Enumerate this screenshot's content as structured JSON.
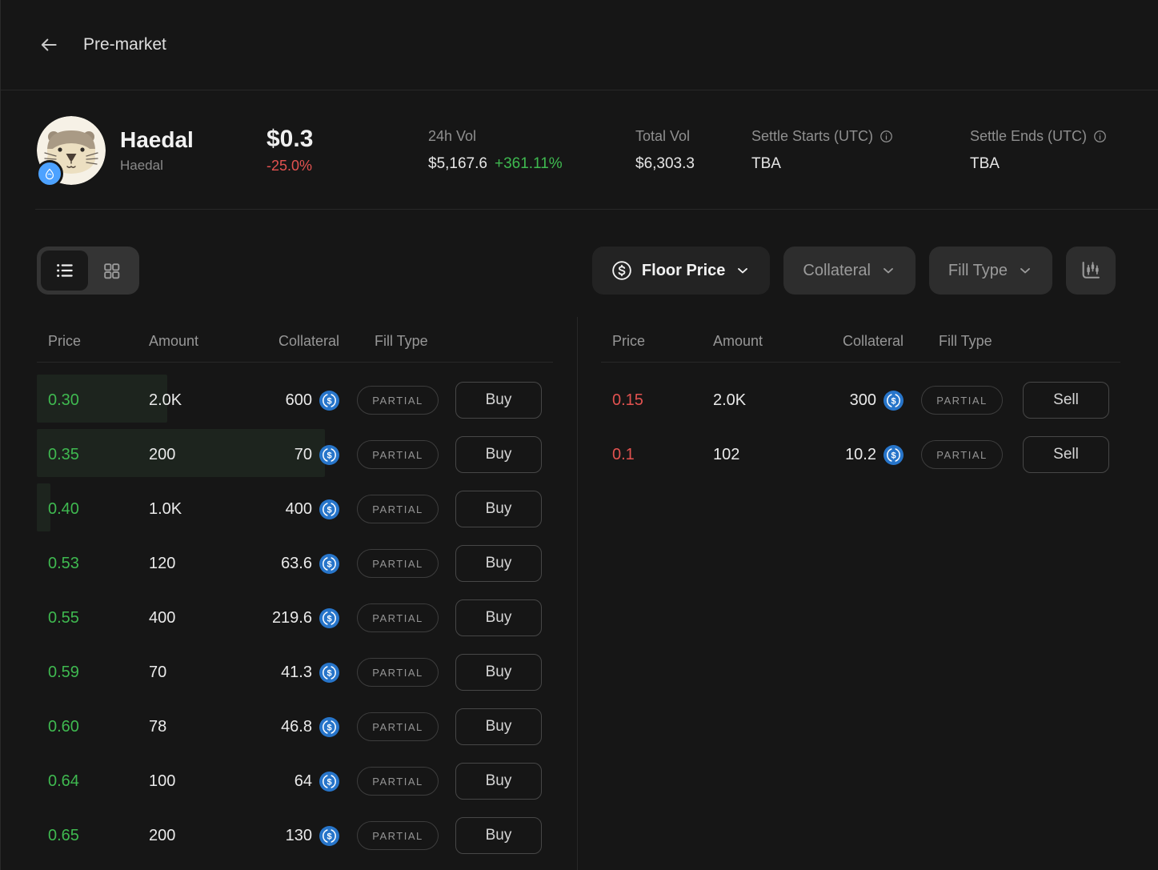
{
  "header": {
    "title": "Pre-market"
  },
  "token": {
    "name": "Haedal",
    "symbol": "Haedal",
    "price": "$0.3",
    "change": "-25.0%",
    "chain": "sui",
    "stats": {
      "vol24h_label": "24h Vol",
      "vol24h_value": "$5,167.6",
      "vol24h_change": "+361.11%",
      "total_vol_label": "Total Vol",
      "total_vol_value": "$6,303.3",
      "settle_starts_label": "Settle Starts (UTC)",
      "settle_starts_value": "TBA",
      "settle_ends_label": "Settle Ends (UTC)",
      "settle_ends_value": "TBA"
    }
  },
  "toolbar": {
    "sort_label": "Floor Price",
    "collateral_label": "Collateral",
    "fill_type_label": "Fill Type"
  },
  "orderbook": {
    "columns": [
      "Price",
      "Amount",
      "Collateral",
      "Fill Type"
    ],
    "collateral_currency": "USDC",
    "buy": {
      "action_label": "Buy",
      "rows": [
        {
          "price": "0.30",
          "amount": "2.0K",
          "collateral": "600",
          "fill": "PARTIAL",
          "depth": 163
        },
        {
          "price": "0.35",
          "amount": "200",
          "collateral": "70",
          "fill": "PARTIAL",
          "depth": 360
        },
        {
          "price": "0.40",
          "amount": "1.0K",
          "collateral": "400",
          "fill": "PARTIAL",
          "depth": 17
        },
        {
          "price": "0.53",
          "amount": "120",
          "collateral": "63.6",
          "fill": "PARTIAL",
          "depth": 0
        },
        {
          "price": "0.55",
          "amount": "400",
          "collateral": "219.6",
          "fill": "PARTIAL",
          "depth": 0
        },
        {
          "price": "0.59",
          "amount": "70",
          "collateral": "41.3",
          "fill": "PARTIAL",
          "depth": 0
        },
        {
          "price": "0.60",
          "amount": "78",
          "collateral": "46.8",
          "fill": "PARTIAL",
          "depth": 0
        },
        {
          "price": "0.64",
          "amount": "100",
          "collateral": "64",
          "fill": "PARTIAL",
          "depth": 0
        },
        {
          "price": "0.65",
          "amount": "200",
          "collateral": "130",
          "fill": "PARTIAL",
          "depth": 0
        }
      ]
    },
    "sell": {
      "action_label": "Sell",
      "rows": [
        {
          "price": "0.15",
          "amount": "2.0K",
          "collateral": "300",
          "fill": "PARTIAL",
          "depth": 0
        },
        {
          "price": "0.1",
          "amount": "102",
          "collateral": "10.2",
          "fill": "PARTIAL",
          "depth": 0
        }
      ]
    }
  },
  "colors": {
    "green": "#3fb950",
    "red": "#e25250",
    "usdc_blue": "#2775ca",
    "sui_blue": "#4da2ff",
    "depth_bar": "#1d241e"
  }
}
